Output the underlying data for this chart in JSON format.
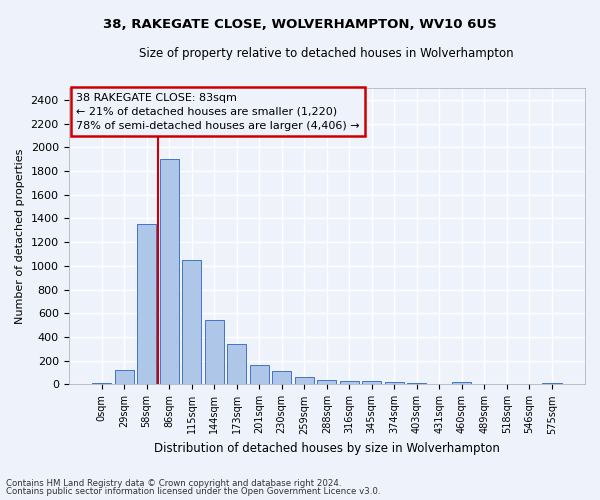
{
  "title": "38, RAKEGATE CLOSE, WOLVERHAMPTON, WV10 6US",
  "subtitle": "Size of property relative to detached houses in Wolverhampton",
  "xlabel": "Distribution of detached houses by size in Wolverhampton",
  "ylabel": "Number of detached properties",
  "categories": [
    "0sqm",
    "29sqm",
    "58sqm",
    "86sqm",
    "115sqm",
    "144sqm",
    "173sqm",
    "201sqm",
    "230sqm",
    "259sqm",
    "288sqm",
    "316sqm",
    "345sqm",
    "374sqm",
    "403sqm",
    "431sqm",
    "460sqm",
    "489sqm",
    "518sqm",
    "546sqm",
    "575sqm"
  ],
  "values": [
    15,
    120,
    1350,
    1900,
    1050,
    545,
    340,
    160,
    110,
    65,
    40,
    30,
    25,
    22,
    15,
    5,
    20,
    5,
    3,
    2,
    15
  ],
  "bar_color": "#aec6e8",
  "bar_edge_color": "#4472c4",
  "ylim": [
    0,
    2500
  ],
  "yticks": [
    0,
    200,
    400,
    600,
    800,
    1000,
    1200,
    1400,
    1600,
    1800,
    2000,
    2200,
    2400
  ],
  "red_line_x": 2.5,
  "annotation_title": "38 RAKEGATE CLOSE: 83sqm",
  "annotation_line1": "← 21% of detached houses are smaller (1,220)",
  "annotation_line2": "78% of semi-detached houses are larger (4,406) →",
  "annotation_box_color": "#cc0000",
  "footer_line1": "Contains HM Land Registry data © Crown copyright and database right 2024.",
  "footer_line2": "Contains public sector information licensed under the Open Government Licence v3.0.",
  "background_color": "#eef2fa",
  "grid_color": "#ffffff"
}
